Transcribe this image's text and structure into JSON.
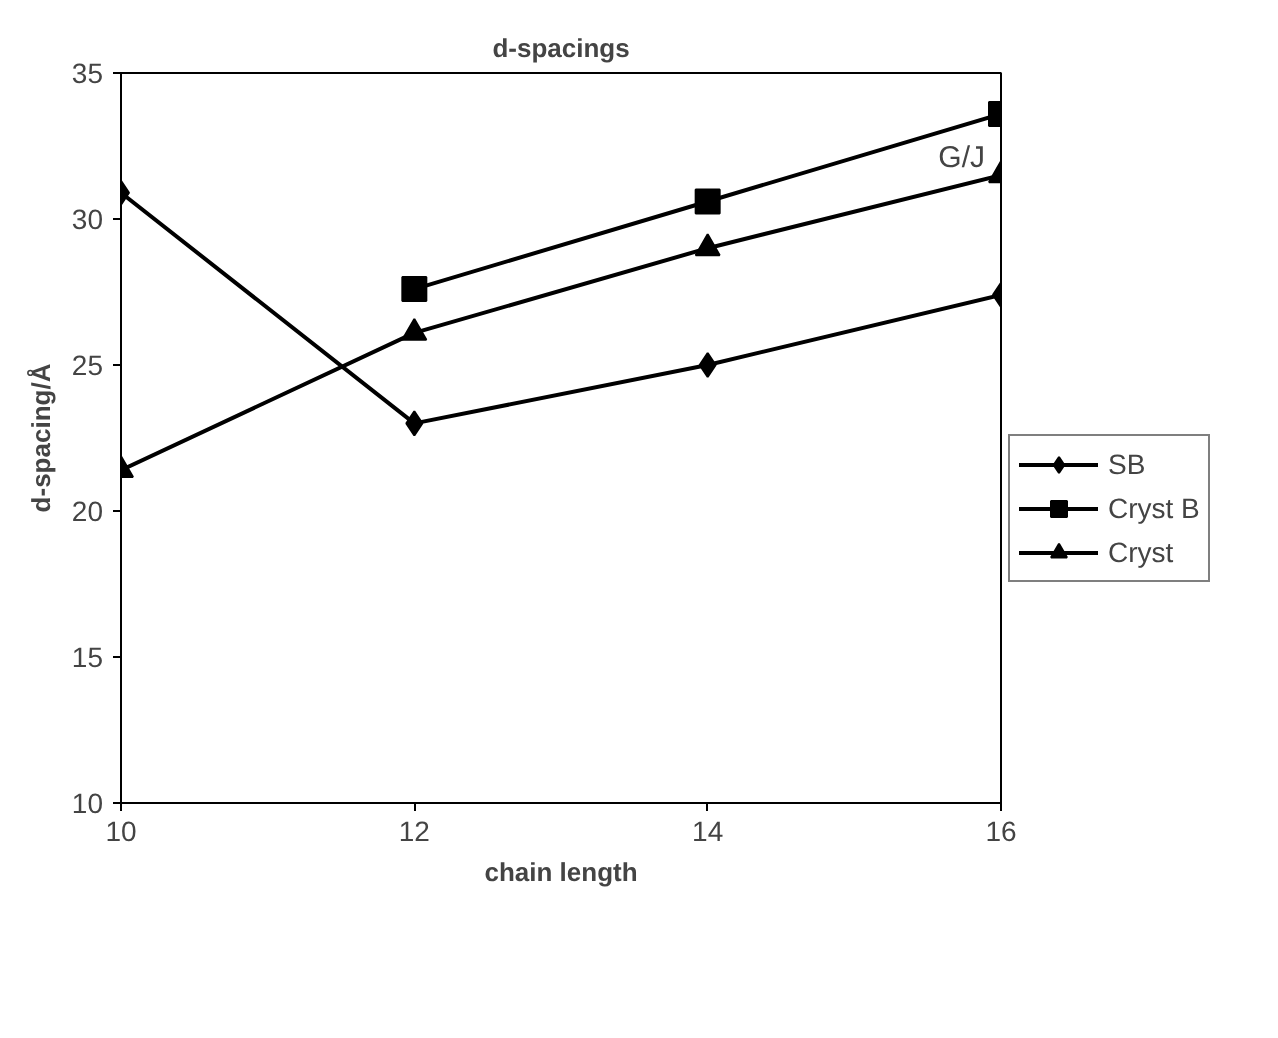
{
  "chart_data": {
    "type": "line",
    "title": "d-spacings",
    "xlabel": "chain length",
    "ylabel": "d-spacing/Å",
    "x": [
      10,
      12,
      14,
      16
    ],
    "series": [
      {
        "name": "SB",
        "color": "#000000",
        "marker": "diamond",
        "values": [
          30.9,
          23.0,
          25.0,
          27.4
        ]
      },
      {
        "name": "Cryst B",
        "color": "#000000",
        "marker": "square",
        "values": [
          null,
          27.6,
          30.6,
          33.6
        ]
      },
      {
        "name": "Cryst",
        "color": "#000000",
        "marker": "triangle",
        "values": [
          21.4,
          26.1,
          29.0,
          31.5
        ]
      }
    ],
    "xlim": [
      10,
      16
    ],
    "xticks": [
      10,
      12,
      14,
      16
    ],
    "ylim": [
      10,
      35
    ],
    "yticks": [
      10,
      15,
      20,
      25,
      30,
      35
    ],
    "grid": false,
    "legend": "right",
    "line_style": "solid",
    "annotations": [
      {
        "text": "G/J",
        "x": 16,
        "y": 31.5
      }
    ]
  }
}
